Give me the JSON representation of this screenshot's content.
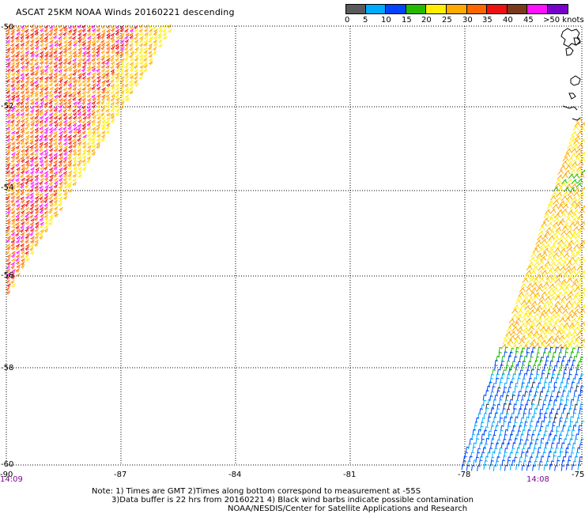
{
  "title": "ASCAT 25KM NOAA Winds 20160221 descending",
  "scale": {
    "colors": [
      "#5a5a5a",
      "#00aaff",
      "#0044ff",
      "#22bb00",
      "#ffee00",
      "#ffaa00",
      "#ff6600",
      "#ee1111",
      "#7a3a1a",
      "#ff11ff",
      "#7700cc"
    ],
    "labels": [
      "0",
      "5",
      "10",
      "15",
      "20",
      "25",
      "30",
      "35",
      "40",
      "45",
      ">50 knots"
    ]
  },
  "axes": {
    "lat_labels": [
      "-50",
      "-52",
      "-54",
      "-56",
      "-58",
      "-60"
    ],
    "lon_labels": [
      "-90",
      "-87",
      "-84",
      "-81",
      "-78",
      "-75"
    ],
    "time_left": "14:09",
    "time_right": "14:08"
  },
  "notes": {
    "line1": "Note: 1) Times are GMT 2)Times along bottom correspond to measurement at -55S",
    "line2": "3)Data buffer is 22 hrs from 20160221 4) Black wind barbs indicate possible contamination",
    "line3": "NOAA/NESDIS/Center for Satellite Applications and Research"
  }
}
